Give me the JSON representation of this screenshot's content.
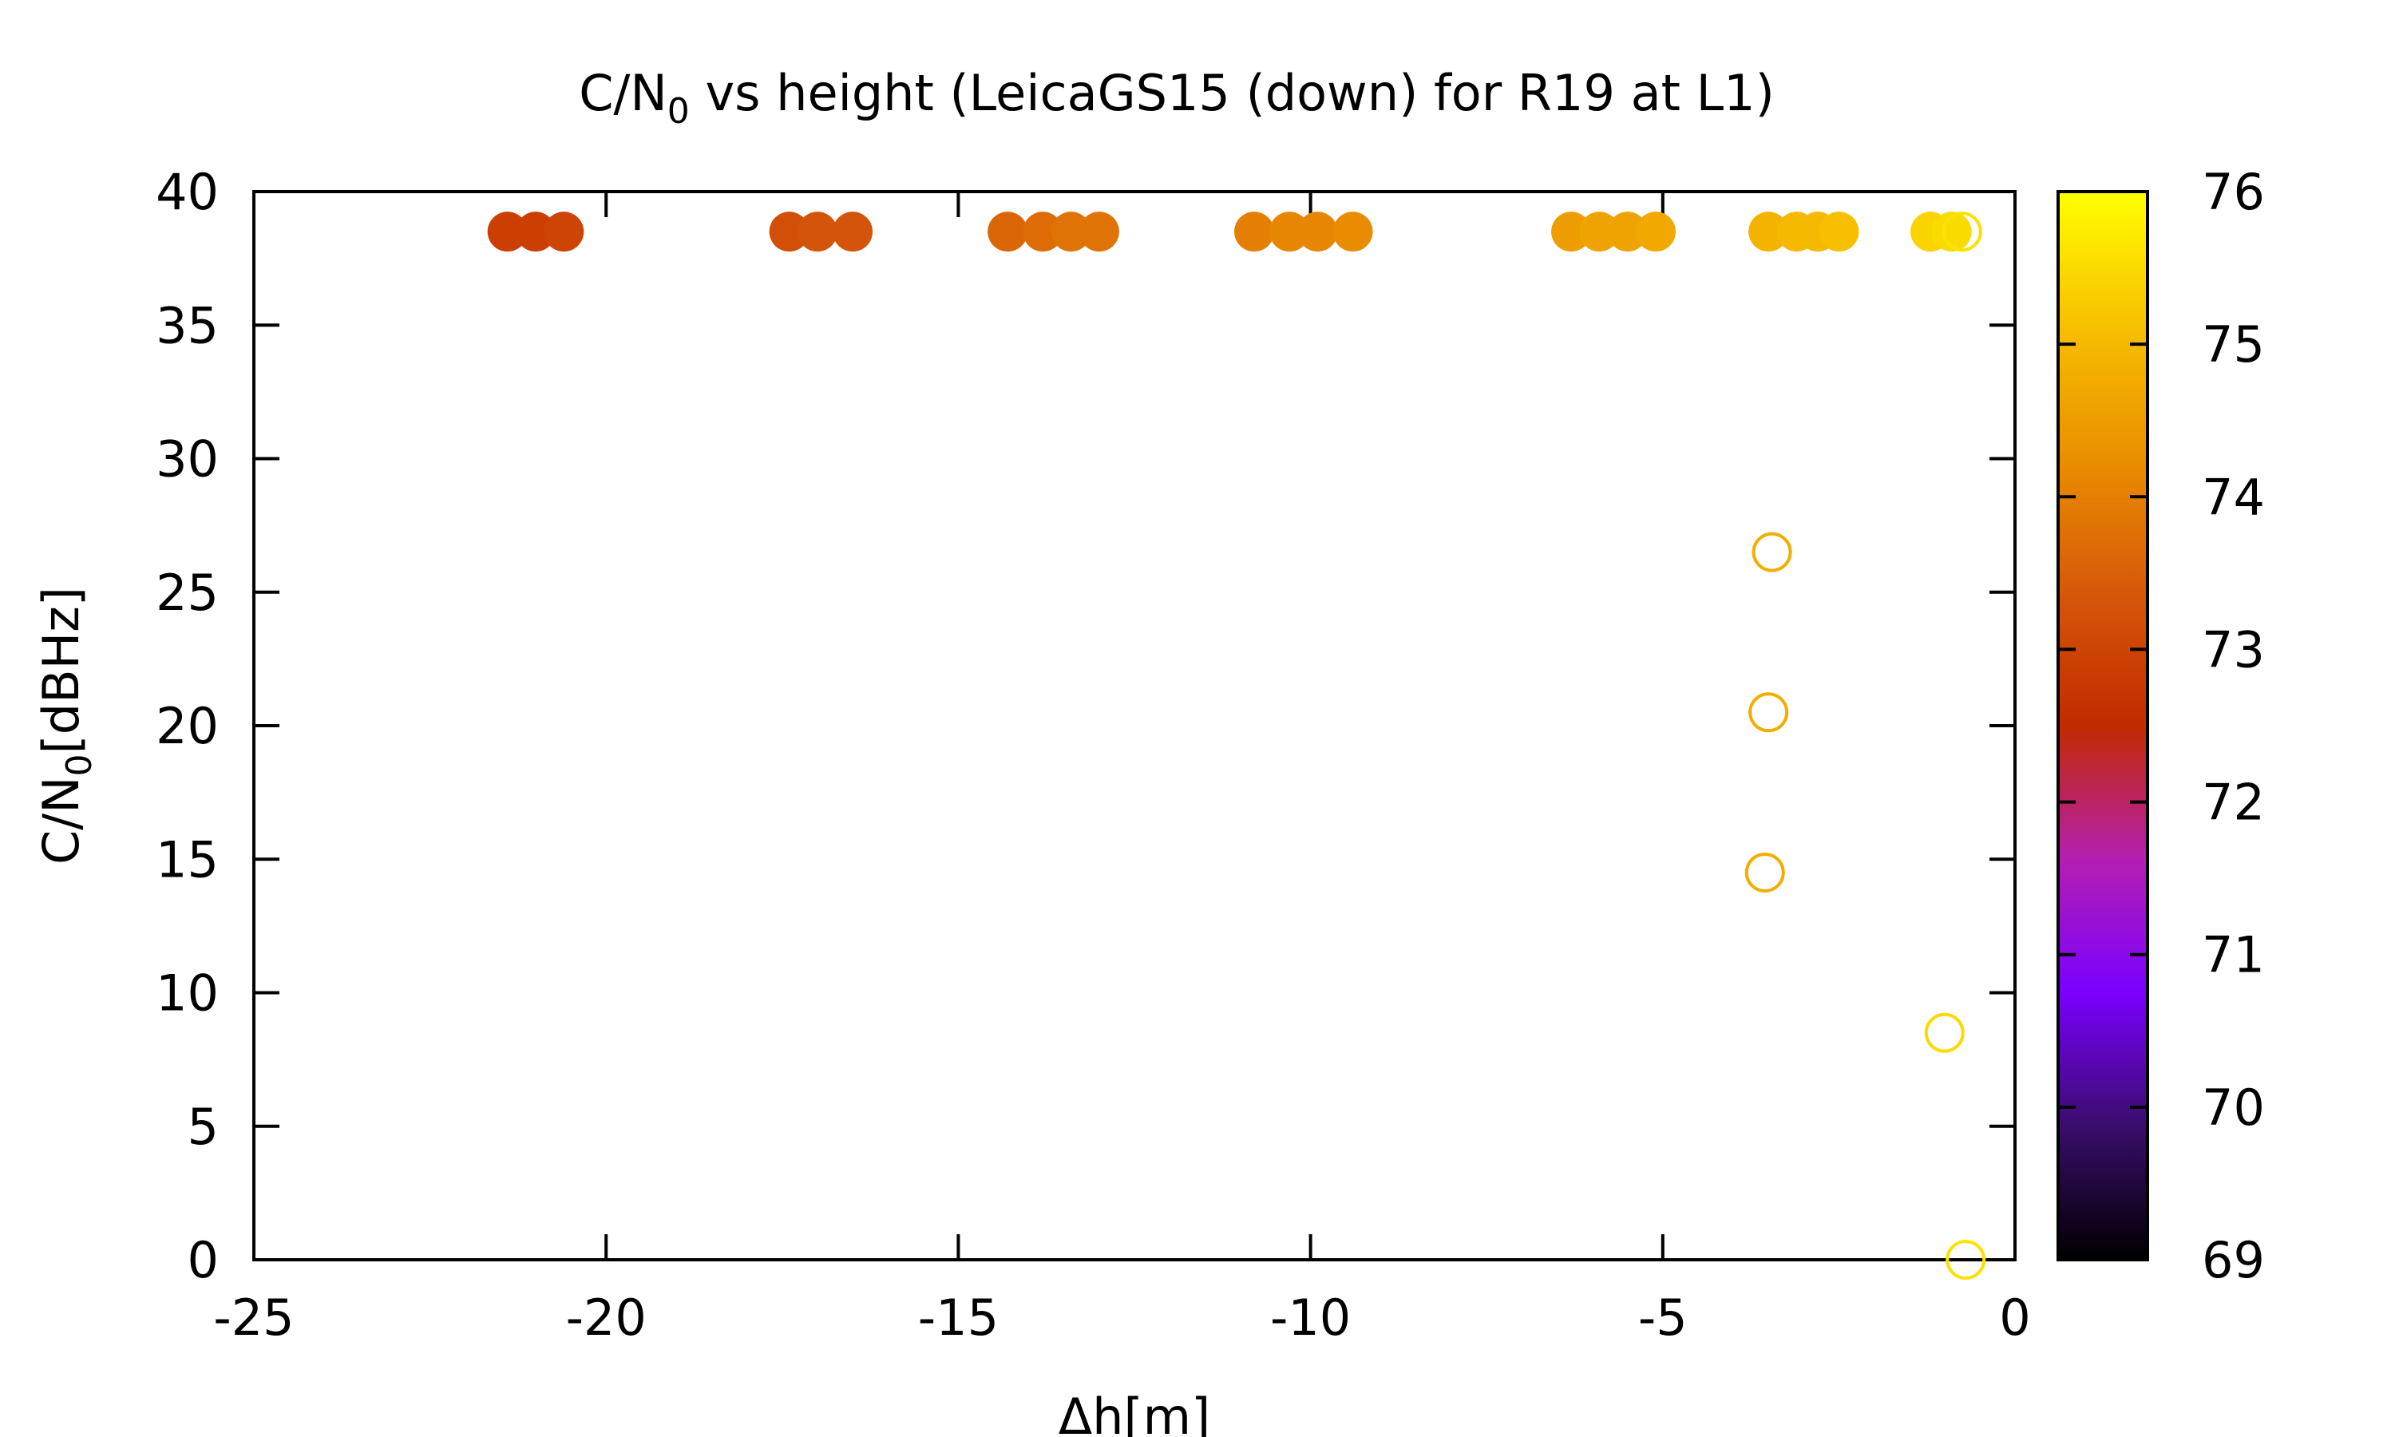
{
  "chart_data": {
    "type": "scatter",
    "title": {
      "main": "C/N",
      "sub": "0",
      "rest": " vs height (LeicaGS15 (down) for R19 at L1)"
    },
    "xlabel": "Δh[m]",
    "ylabel": {
      "main": "C/N",
      "sub": "0",
      "rest": "[dBHz]"
    },
    "xlim": [
      -25,
      0
    ],
    "ylim": [
      0,
      40
    ],
    "xticks": [
      "-25",
      "-20",
      "-15",
      "-10",
      "-5",
      "0"
    ],
    "yticks": [
      "0",
      "5",
      "10",
      "15",
      "20",
      "25",
      "30",
      "35",
      "40"
    ],
    "colorbar": {
      "range": [
        69,
        76
      ],
      "ticks": [
        "69",
        "70",
        "71",
        "72",
        "73",
        "74",
        "75",
        "76"
      ],
      "palette": [
        "#000000",
        "#3a0d6b",
        "#7a00ff",
        "#b41fb0",
        "#c22a00",
        "#d6580a",
        "#ea8f00",
        "#f7c000",
        "#ffff00"
      ]
    },
    "series": [
      {
        "marker": "filled-circle",
        "points": [
          {
            "x": -21.4,
            "y": 38.5,
            "c": 72.9
          },
          {
            "x": -21.0,
            "y": 38.5,
            "c": 72.9
          },
          {
            "x": -20.6,
            "y": 38.5,
            "c": 73.0
          },
          {
            "x": -17.4,
            "y": 38.5,
            "c": 73.2
          },
          {
            "x": -17.0,
            "y": 38.5,
            "c": 73.3
          },
          {
            "x": -16.5,
            "y": 38.5,
            "c": 73.3
          },
          {
            "x": -14.3,
            "y": 38.5,
            "c": 73.6
          },
          {
            "x": -13.8,
            "y": 38.5,
            "c": 73.7
          },
          {
            "x": -13.4,
            "y": 38.5,
            "c": 73.8
          },
          {
            "x": -13.0,
            "y": 38.5,
            "c": 73.8
          },
          {
            "x": -10.8,
            "y": 38.5,
            "c": 74.0
          },
          {
            "x": -10.3,
            "y": 38.5,
            "c": 74.1
          },
          {
            "x": -9.9,
            "y": 38.5,
            "c": 74.1
          },
          {
            "x": -9.4,
            "y": 38.5,
            "c": 74.2
          },
          {
            "x": -6.3,
            "y": 38.5,
            "c": 74.5
          },
          {
            "x": -5.9,
            "y": 38.5,
            "c": 74.6
          },
          {
            "x": -5.5,
            "y": 38.5,
            "c": 74.6
          },
          {
            "x": -5.1,
            "y": 38.5,
            "c": 74.7
          },
          {
            "x": -3.5,
            "y": 38.5,
            "c": 74.9
          },
          {
            "x": -3.1,
            "y": 38.5,
            "c": 75.0
          },
          {
            "x": -2.8,
            "y": 38.5,
            "c": 75.0
          },
          {
            "x": -2.5,
            "y": 38.5,
            "c": 75.1
          },
          {
            "x": -1.2,
            "y": 38.5,
            "c": 75.4
          },
          {
            "x": -0.9,
            "y": 38.5,
            "c": 75.5
          }
        ]
      },
      {
        "marker": "open-circle",
        "points": [
          {
            "x": -0.75,
            "y": 38.5,
            "c": 75.6
          },
          {
            "x": -3.45,
            "y": 26.5,
            "c": 74.8
          },
          {
            "x": -3.5,
            "y": 20.5,
            "c": 74.8
          },
          {
            "x": -3.55,
            "y": 14.5,
            "c": 74.8
          },
          {
            "x": -1.0,
            "y": 8.5,
            "c": 75.5
          },
          {
            "x": -0.7,
            "y": 0.0,
            "c": 75.6
          }
        ]
      }
    ]
  }
}
